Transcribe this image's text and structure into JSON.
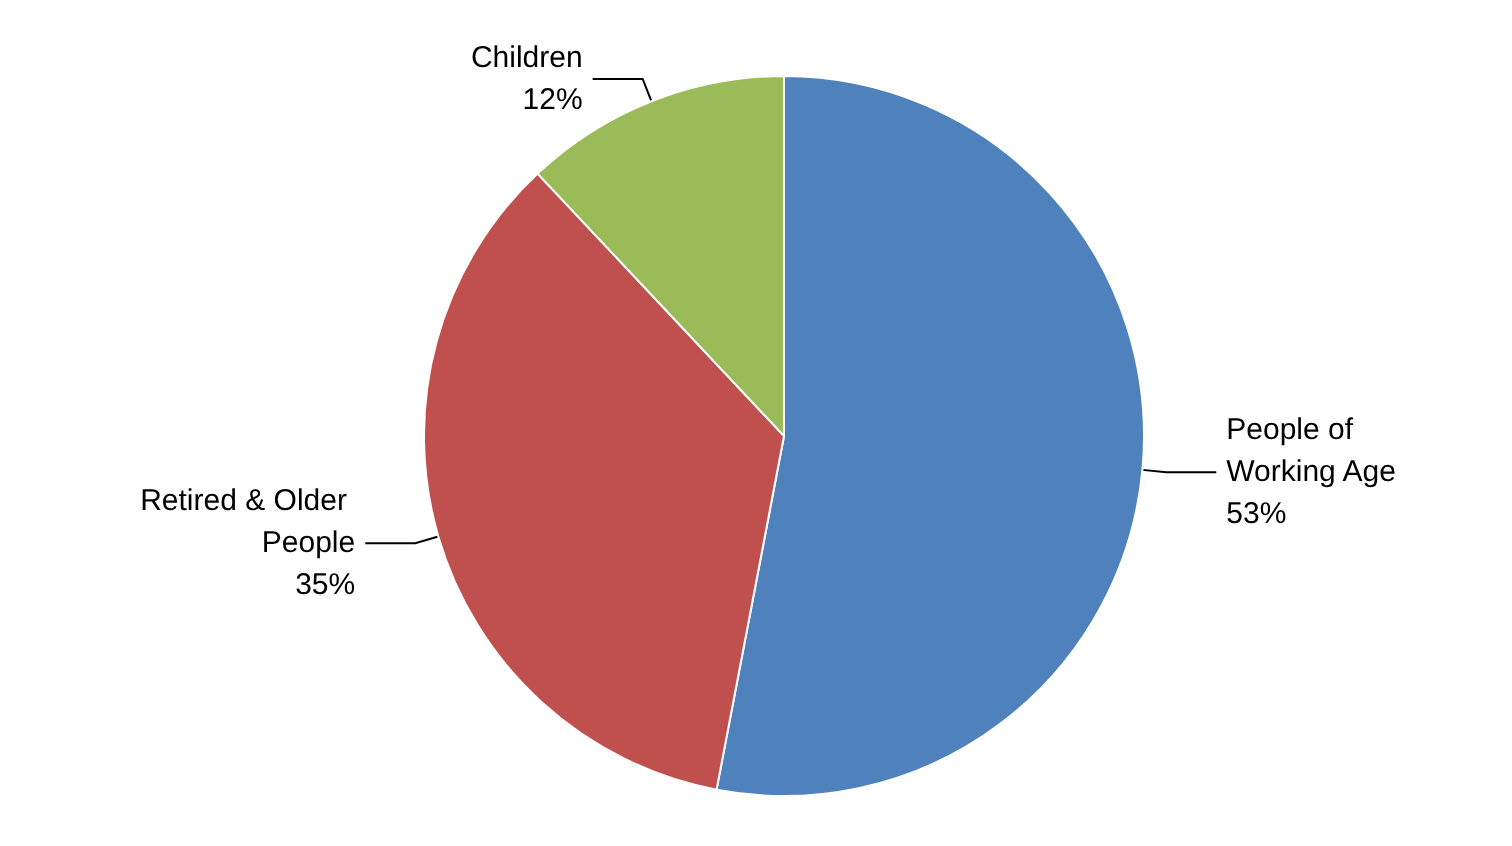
{
  "chart_data": {
    "type": "pie",
    "categories": [
      "People of Working Age",
      "Retired & Older People",
      "Children"
    ],
    "values": [
      53,
      35,
      12
    ],
    "value_labels": [
      "53%",
      "35%",
      "12%"
    ],
    "colors": [
      "#4f81bd",
      "#c0504d",
      "#9bbb59"
    ]
  }
}
